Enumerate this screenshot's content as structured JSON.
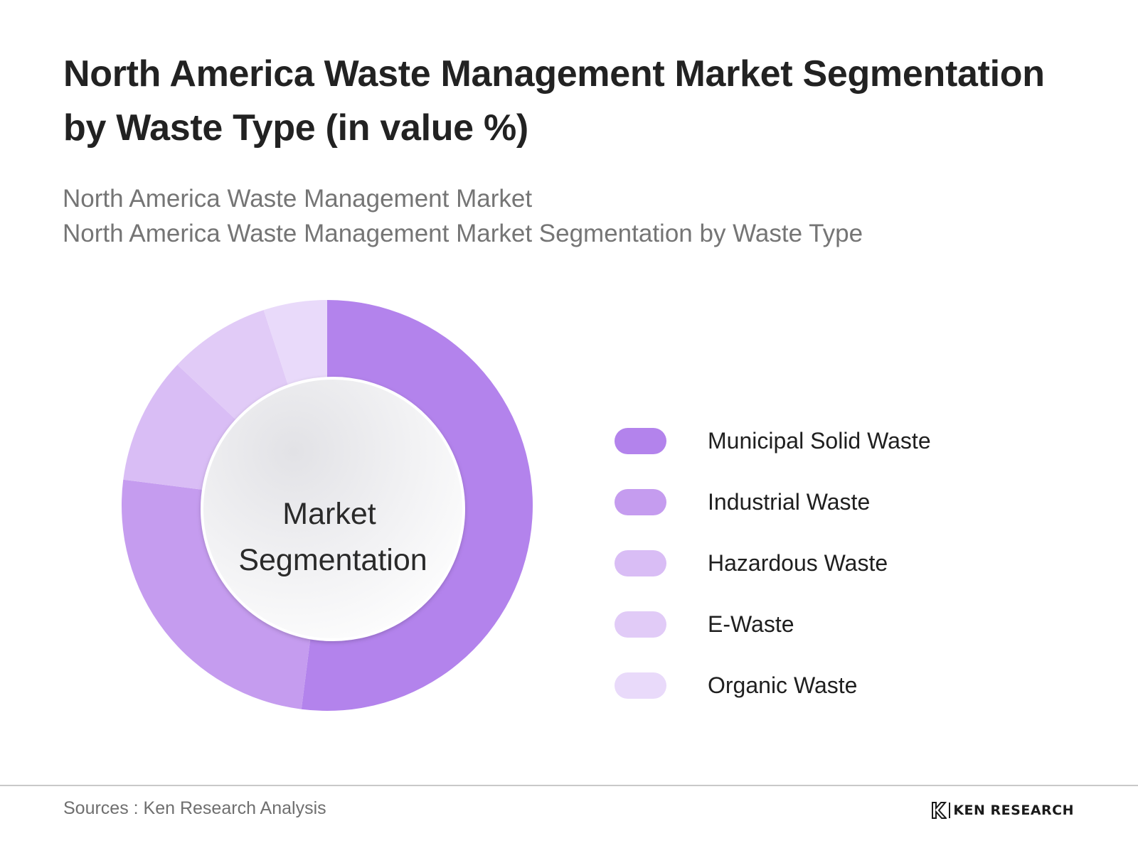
{
  "header": {
    "title": "North America Waste Management Market Segmentation by Waste Type (in value %)",
    "subtitle_lines": [
      "North America Waste Management Market",
      "North America Waste Management Market Segmentation by Waste Type"
    ]
  },
  "chart_data": {
    "type": "pie",
    "variant": "donut",
    "center_label": [
      "Market",
      "Segmentation"
    ],
    "categories": [
      "Municipal Solid Waste",
      "Industrial Waste",
      "Hazardous Waste",
      "E-Waste",
      "Organic Waste"
    ],
    "values": [
      52,
      25,
      10,
      8,
      5
    ],
    "colors": [
      "#b383ec",
      "#c59cef",
      "#d9bdf5",
      "#e1cbf7",
      "#e9dafa"
    ],
    "legend_position": "right"
  },
  "footer": {
    "source": "Sources : Ken Research Analysis",
    "brand": "KEN RESEARCH",
    "brand_icon": "ken-research-logo-icon"
  }
}
